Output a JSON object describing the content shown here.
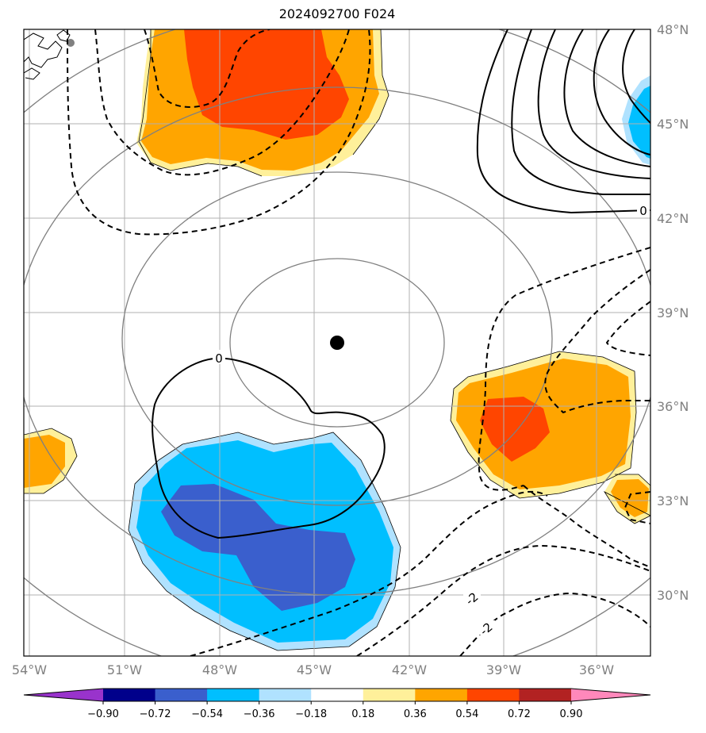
{
  "title": "2024092700 F024",
  "lon_labels": [
    "54°W",
    "51°W",
    "48°W",
    "45°W",
    "42°W",
    "39°W",
    "36°W"
  ],
  "lat_labels": [
    "48°N",
    "45°N",
    "42°N",
    "39°N",
    "36°N",
    "33°N",
    "30°N"
  ],
  "contour_labels": {
    "zero_ne": "0",
    "zero_center": "0",
    "neg2_a": "-2",
    "neg2_b": "-2"
  },
  "colorbar": {
    "ticks": [
      "−0.90",
      "−0.72",
      "−0.54",
      "−0.36",
      "−0.18",
      "0.18",
      "0.36",
      "0.54",
      "0.72",
      "0.90"
    ],
    "colors": [
      "#9933cc",
      "#00008b",
      "#3a5fcd",
      "#00bfff",
      "#b0e2ff",
      "#ffffff",
      "#fff09a",
      "#ffa500",
      "#ff4500",
      "#b22222",
      "#ff88bb"
    ]
  },
  "colors": {
    "grid": "#b0b0b0",
    "range_rings": "#808080",
    "tick_labels": "#808080"
  },
  "map_extent": {
    "lon": [
      -54.5,
      -34.5
    ],
    "lat": [
      28,
      48
    ]
  },
  "storm_center": {
    "lon": -44.3,
    "lat": 38.0
  }
}
